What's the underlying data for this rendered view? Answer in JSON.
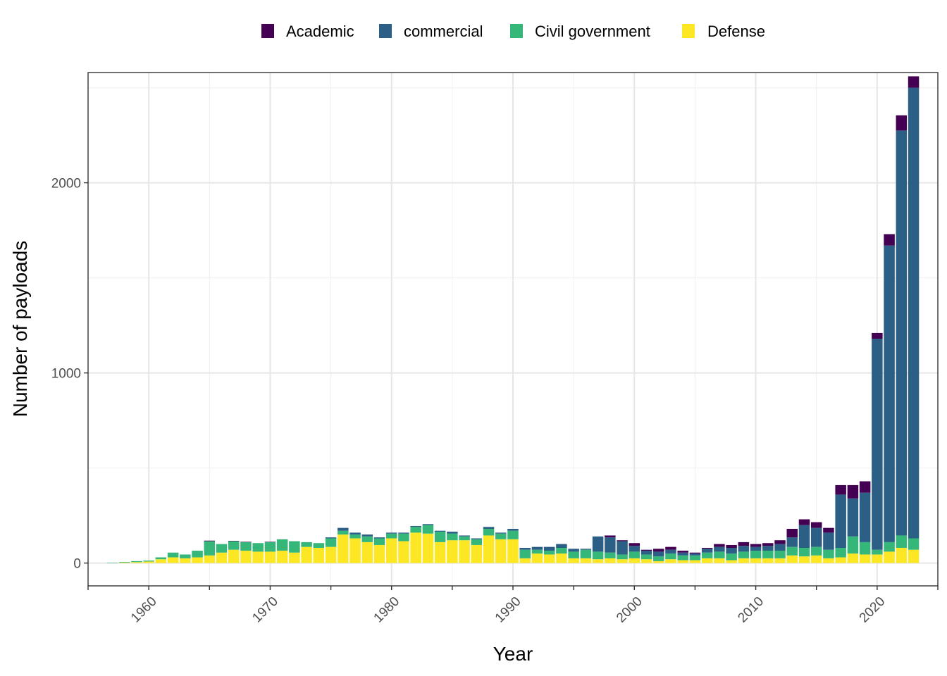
{
  "chart_data": {
    "type": "bar",
    "stacked": true,
    "title": "",
    "xlabel": "Year",
    "ylabel": "Number of payloads",
    "xlim": [
      1955,
      2025
    ],
    "ylim": [
      -120,
      2580
    ],
    "x_ticks": [
      1960,
      1970,
      1980,
      1990,
      2000,
      2010,
      2020
    ],
    "x_tick_labels": [
      "1960",
      "1970",
      "1980",
      "1990",
      "2000",
      "2010",
      "2020"
    ],
    "y_ticks": [
      0,
      1000,
      2000
    ],
    "y_tick_labels": [
      "0",
      "1000",
      "2000"
    ],
    "grid": true,
    "legend_position": "top",
    "x": [
      1957,
      1958,
      1959,
      1960,
      1961,
      1962,
      1963,
      1964,
      1965,
      1966,
      1967,
      1968,
      1969,
      1970,
      1971,
      1972,
      1973,
      1974,
      1975,
      1976,
      1977,
      1978,
      1979,
      1980,
      1981,
      1982,
      1983,
      1984,
      1985,
      1986,
      1987,
      1988,
      1989,
      1990,
      1991,
      1992,
      1993,
      1994,
      1995,
      1996,
      1997,
      1998,
      1999,
      2000,
      2001,
      2002,
      2003,
      2004,
      2005,
      2006,
      2007,
      2008,
      2009,
      2010,
      2011,
      2012,
      2013,
      2014,
      2015,
      2016,
      2017,
      2018,
      2019,
      2020,
      2021,
      2022,
      2023
    ],
    "series": [
      {
        "name": "Defense",
        "color": "#fde725",
        "values": [
          0,
          3,
          5,
          8,
          20,
          30,
          25,
          30,
          40,
          55,
          70,
          65,
          60,
          60,
          65,
          55,
          85,
          80,
          85,
          150,
          130,
          110,
          95,
          130,
          115,
          160,
          155,
          110,
          120,
          120,
          95,
          145,
          125,
          125,
          25,
          50,
          45,
          50,
          25,
          25,
          20,
          25,
          20,
          25,
          20,
          10,
          20,
          15,
          15,
          25,
          25,
          15,
          25,
          25,
          25,
          25,
          40,
          35,
          40,
          25,
          30,
          50,
          45,
          45,
          60,
          80,
          70
        ]
      },
      {
        "name": "Civil government",
        "color": "#35b779",
        "values": [
          2,
          3,
          5,
          5,
          10,
          25,
          20,
          35,
          75,
          45,
          45,
          45,
          45,
          50,
          60,
          60,
          25,
          25,
          45,
          20,
          20,
          30,
          35,
          25,
          40,
          30,
          45,
          55,
          35,
          20,
          30,
          35,
          30,
          45,
          45,
          20,
          20,
          30,
          35,
          45,
          40,
          30,
          25,
          35,
          25,
          25,
          30,
          25,
          25,
          30,
          35,
          35,
          35,
          40,
          40,
          40,
          45,
          45,
          45,
          45,
          50,
          90,
          65,
          25,
          50,
          65,
          60
        ]
      },
      {
        "name": "commercial",
        "color": "#2c5f85",
        "values": [
          0,
          0,
          0,
          0,
          0,
          0,
          0,
          0,
          0,
          0,
          0,
          0,
          0,
          0,
          0,
          0,
          0,
          0,
          5,
          15,
          10,
          10,
          5,
          5,
          5,
          5,
          5,
          5,
          10,
          5,
          5,
          10,
          5,
          10,
          10,
          15,
          20,
          20,
          15,
          5,
          80,
          80,
          70,
          30,
          20,
          25,
          20,
          15,
          10,
          20,
          25,
          30,
          30,
          20,
          25,
          35,
          50,
          120,
          100,
          90,
          280,
          200,
          260,
          1110,
          1560,
          2130,
          2370
        ]
      },
      {
        "name": "Academic",
        "color": "#440154",
        "values": [
          0,
          0,
          0,
          0,
          0,
          0,
          0,
          0,
          3,
          0,
          2,
          2,
          0,
          2,
          0,
          0,
          0,
          0,
          0,
          0,
          0,
          0,
          0,
          0,
          0,
          0,
          0,
          0,
          0,
          0,
          0,
          0,
          0,
          0,
          0,
          0,
          0,
          0,
          0,
          0,
          0,
          10,
          5,
          15,
          5,
          15,
          15,
          10,
          5,
          5,
          15,
          15,
          20,
          15,
          15,
          20,
          45,
          30,
          30,
          25,
          50,
          70,
          60,
          30,
          60,
          80,
          60
        ]
      }
    ]
  },
  "legend": {
    "items": [
      {
        "label": "Academic",
        "color": "#440154"
      },
      {
        "label": "commercial",
        "color": "#2c5f85"
      },
      {
        "label": "Civil government",
        "color": "#35b779"
      },
      {
        "label": "Defense",
        "color": "#fde725"
      }
    ]
  }
}
